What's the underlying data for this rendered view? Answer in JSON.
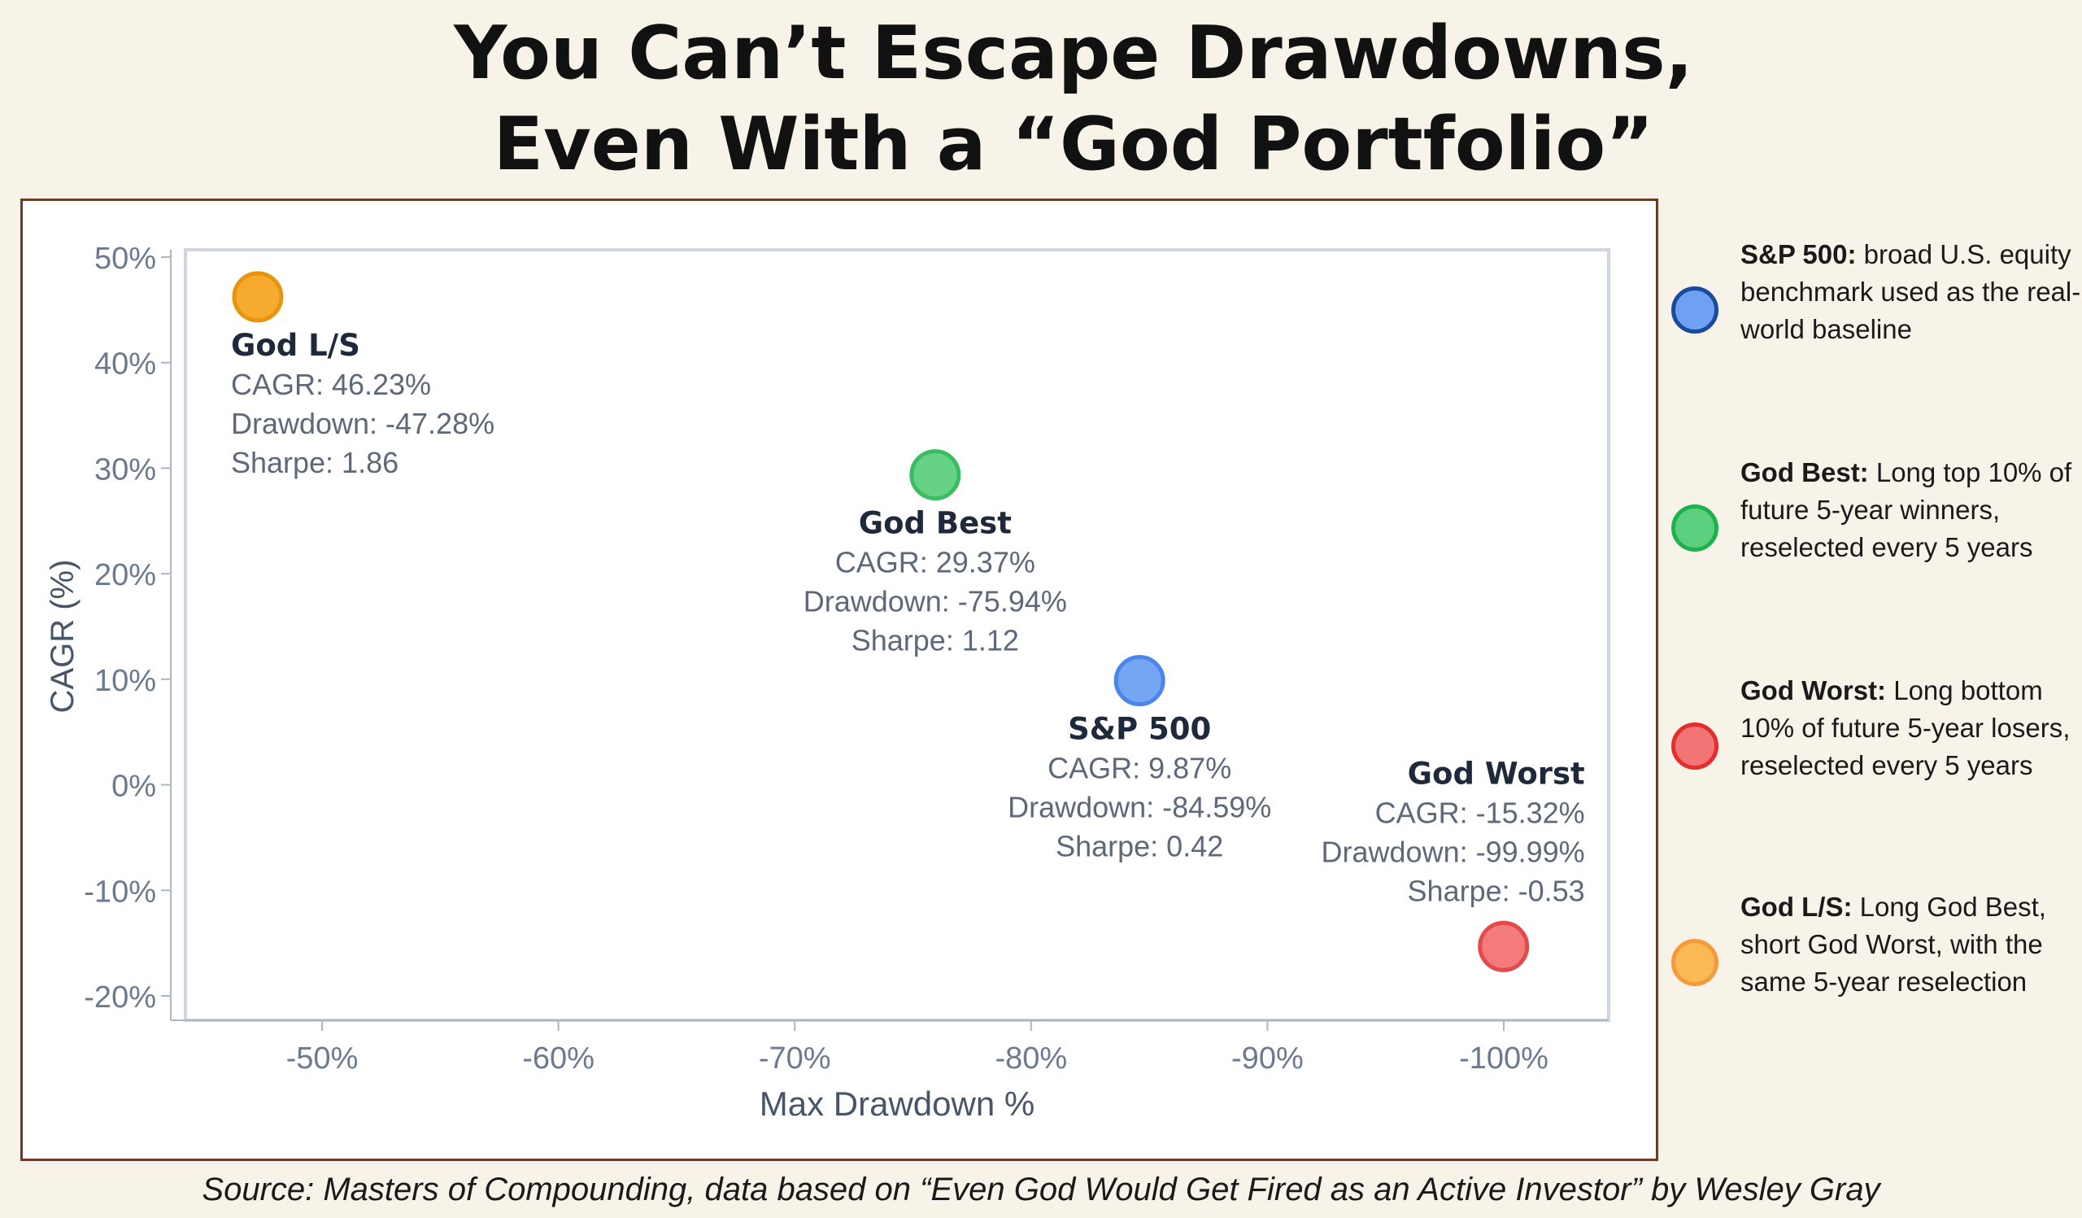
{
  "title": {
    "line1": "You Can’t Escape Drawdowns,",
    "line2": "Even With a “God Portfolio”"
  },
  "chart_data": {
    "type": "scatter",
    "xlabel": "Max Drawdown %",
    "ylabel": "CAGR (%)",
    "xlim": [
      -45,
      -105
    ],
    "ylim": [
      -22,
      50
    ],
    "x_ticks": [
      -50,
      -60,
      -70,
      -80,
      -90,
      -100
    ],
    "x_tick_labels": [
      "-50%",
      "-60%",
      "-70%",
      "-80%",
      "-90%",
      "-100%"
    ],
    "y_ticks": [
      50,
      40,
      30,
      20,
      10,
      0,
      -10,
      -20
    ],
    "y_tick_labels": [
      "50%",
      "40%",
      "30%",
      "20%",
      "10%",
      "0%",
      "-10%",
      "-20%"
    ],
    "grid": false,
    "points": [
      {
        "name": "God L/S",
        "x": -47.28,
        "y": 46.23,
        "color": "#f5a623",
        "stroke": "#e69510",
        "label_position": "below-left",
        "lines": [
          "CAGR: 46.23%",
          "Drawdown: -47.28%",
          "Sharpe: 1.86"
        ]
      },
      {
        "name": "God Best",
        "x": -75.94,
        "y": 29.37,
        "color": "#5dd07f",
        "stroke": "#3cbc62",
        "label_position": "below-center",
        "lines": [
          "CAGR: 29.37%",
          "Drawdown: -75.94%",
          "Sharpe: 1.12"
        ]
      },
      {
        "name": "S&P 500",
        "x": -84.59,
        "y": 9.87,
        "color": "#6ea1f2",
        "stroke": "#4a86ea",
        "label_position": "below-center",
        "lines": [
          "CAGR: 9.87%",
          "Drawdown: -84.59%",
          "Sharpe: 0.42"
        ]
      },
      {
        "name": "God Worst",
        "x": -99.99,
        "y": -15.32,
        "color": "#f27474",
        "stroke": "#e34b4b",
        "label_position": "above-right",
        "lines": [
          "CAGR: -15.32%",
          "Drawdown: -99.99%",
          "Sharpe: -0.53"
        ]
      }
    ]
  },
  "legend": {
    "items": [
      {
        "name": "S&P 500:",
        "text": " broad U.S. equity benchmark used as the real-world baseline",
        "fill": "#6ea1f2",
        "stroke": "#1a4a9c"
      },
      {
        "name": "God Best:",
        "text": " Long top 10% of future 5-year winners, reselected every 5 years",
        "fill": "#5dd07f",
        "stroke": "#1fb14e"
      },
      {
        "name": "God Worst:",
        "text": " Long bottom 10% of future 5-year losers, reselected every 5 years",
        "fill": "#f27474",
        "stroke": "#e52d2d"
      },
      {
        "name": "God L/S:",
        "text": " Long God Best, short God Worst, with the same 5-year reselection",
        "fill": "#fbb955",
        "stroke": "#f59a3c"
      }
    ]
  },
  "source": "Source: Masters of Compounding, data based on “Even God Would Get Fired as an Active Investor” by Wesley Gray"
}
